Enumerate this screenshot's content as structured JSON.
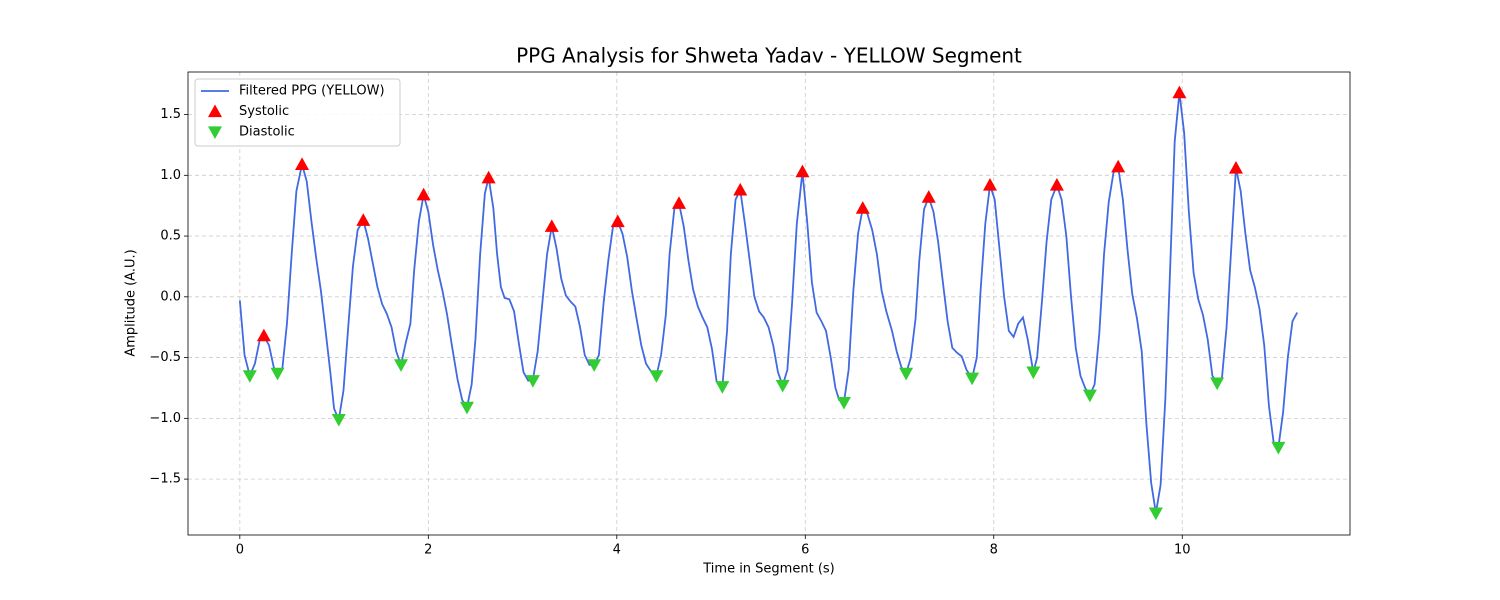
{
  "chart_data": {
    "type": "line",
    "title": "PPG Analysis for Shweta Yadav - YELLOW Segment",
    "xlabel": "Time in Segment (s)",
    "ylabel": "Amplitude (A.U.)",
    "xlim": [
      -0.55,
      11.78
    ],
    "ylim": [
      -1.96,
      1.85
    ],
    "xticks": [
      0,
      2,
      4,
      6,
      8,
      10
    ],
    "yticks": [
      {
        "value": -1.5,
        "label": "−1.5"
      },
      {
        "value": -1.0,
        "label": "−1.0"
      },
      {
        "value": -0.5,
        "label": "−0.5"
      },
      {
        "value": 0,
        "label": "0.0"
      },
      0.5,
      {
        "value": 1.0,
        "label": "1.0"
      },
      1.5
    ],
    "grid": true,
    "legend": "upper left",
    "series": [
      {
        "name": "Filtered PPG (YELLOW)",
        "color": "#4169e1",
        "marker": "none",
        "x": [
          0.0,
          0.05,
          0.106,
          0.16,
          0.21,
          0.255,
          0.31,
          0.36,
          0.4,
          0.45,
          0.5,
          0.55,
          0.6,
          0.66,
          0.71,
          0.76,
          0.81,
          0.86,
          0.91,
          0.96,
          1.0,
          1.05,
          1.1,
          1.15,
          1.2,
          1.25,
          1.31,
          1.36,
          1.41,
          1.46,
          1.51,
          1.56,
          1.61,
          1.66,
          1.71,
          1.76,
          1.81,
          1.85,
          1.9,
          1.95,
          2.0,
          2.05,
          2.1,
          2.15,
          2.2,
          2.25,
          2.31,
          2.36,
          2.41,
          2.46,
          2.5,
          2.55,
          2.6,
          2.64,
          2.69,
          2.73,
          2.77,
          2.81,
          2.86,
          2.91,
          2.96,
          3.01,
          3.06,
          3.11,
          3.16,
          3.21,
          3.26,
          3.31,
          3.36,
          3.41,
          3.46,
          3.51,
          3.56,
          3.61,
          3.66,
          3.71,
          3.76,
          3.81,
          3.86,
          3.91,
          3.96,
          4.01,
          4.06,
          4.11,
          4.16,
          4.21,
          4.26,
          4.31,
          4.36,
          4.42,
          4.47,
          4.52,
          4.56,
          4.61,
          4.66,
          4.71,
          4.76,
          4.81,
          4.86,
          4.91,
          4.96,
          5.01,
          5.06,
          5.12,
          5.17,
          5.21,
          5.26,
          5.31,
          5.36,
          5.41,
          5.46,
          5.51,
          5.56,
          5.61,
          5.66,
          5.71,
          5.76,
          5.81,
          5.86,
          5.91,
          5.97,
          6.02,
          6.07,
          6.12,
          6.17,
          6.22,
          6.27,
          6.32,
          6.36,
          6.41,
          6.46,
          6.51,
          6.56,
          6.61,
          6.66,
          6.71,
          6.76,
          6.81,
          6.86,
          6.92,
          6.97,
          7.02,
          7.07,
          7.12,
          7.17,
          7.21,
          7.26,
          7.31,
          7.36,
          7.41,
          7.46,
          7.51,
          7.56,
          7.61,
          7.66,
          7.71,
          7.77,
          7.82,
          7.86,
          7.91,
          7.96,
          8.01,
          8.06,
          8.11,
          8.16,
          8.21,
          8.26,
          8.31,
          8.36,
          8.42,
          8.46,
          8.51,
          8.56,
          8.61,
          8.67,
          8.72,
          8.77,
          8.82,
          8.87,
          8.92,
          8.97,
          9.02,
          9.07,
          9.12,
          9.17,
          9.22,
          9.27,
          9.32,
          9.37,
          9.42,
          9.47,
          9.52,
          9.57,
          9.62,
          9.67,
          9.72,
          9.77,
          9.82,
          9.87,
          9.92,
          9.97,
          10.02,
          10.07,
          10.12,
          10.17,
          10.22,
          10.27,
          10.32,
          10.37,
          10.42,
          10.47,
          10.52,
          10.57,
          10.62,
          10.67,
          10.72,
          10.77,
          10.82,
          10.87,
          10.92,
          10.97,
          11.02,
          11.07,
          11.12,
          11.17,
          11.22
        ],
        "values": [
          -0.03,
          -0.48,
          -0.65,
          -0.55,
          -0.36,
          -0.32,
          -0.4,
          -0.58,
          -0.63,
          -0.6,
          -0.22,
          0.35,
          0.87,
          1.09,
          0.95,
          0.62,
          0.32,
          0.05,
          -0.28,
          -0.62,
          -0.92,
          -1.01,
          -0.77,
          -0.25,
          0.25,
          0.55,
          0.63,
          0.48,
          0.28,
          0.08,
          -0.06,
          -0.14,
          -0.25,
          -0.45,
          -0.56,
          -0.38,
          -0.22,
          0.22,
          0.62,
          0.84,
          0.7,
          0.43,
          0.22,
          0.05,
          -0.15,
          -0.4,
          -0.68,
          -0.85,
          -0.91,
          -0.72,
          -0.35,
          0.35,
          0.85,
          0.98,
          0.73,
          0.35,
          0.08,
          -0.01,
          -0.02,
          -0.12,
          -0.38,
          -0.62,
          -0.69,
          -0.68,
          -0.45,
          -0.05,
          0.35,
          0.58,
          0.4,
          0.15,
          0.01,
          -0.04,
          -0.08,
          -0.25,
          -0.48,
          -0.56,
          -0.56,
          -0.48,
          -0.05,
          0.3,
          0.58,
          0.62,
          0.52,
          0.33,
          0.05,
          -0.18,
          -0.4,
          -0.55,
          -0.61,
          -0.65,
          -0.48,
          -0.15,
          0.35,
          0.72,
          0.77,
          0.58,
          0.3,
          0.06,
          -0.08,
          -0.17,
          -0.25,
          -0.43,
          -0.7,
          -0.74,
          -0.28,
          0.35,
          0.8,
          0.88,
          0.6,
          0.3,
          0.0,
          -0.12,
          -0.17,
          -0.25,
          -0.4,
          -0.62,
          -0.73,
          -0.6,
          -0.05,
          0.6,
          1.03,
          0.62,
          0.12,
          -0.13,
          -0.2,
          -0.28,
          -0.5,
          -0.75,
          -0.85,
          -0.87,
          -0.6,
          0.05,
          0.52,
          0.73,
          0.68,
          0.55,
          0.35,
          0.05,
          -0.12,
          -0.28,
          -0.45,
          -0.58,
          -0.63,
          -0.5,
          -0.18,
          0.3,
          0.72,
          0.82,
          0.7,
          0.45,
          0.12,
          -0.2,
          -0.42,
          -0.46,
          -0.49,
          -0.6,
          -0.67,
          -0.5,
          0.05,
          0.6,
          0.92,
          0.8,
          0.4,
          0.0,
          -0.28,
          -0.33,
          -0.22,
          -0.17,
          -0.35,
          -0.62,
          -0.5,
          -0.05,
          0.45,
          0.8,
          0.92,
          0.8,
          0.5,
          0.0,
          -0.42,
          -0.65,
          -0.75,
          -0.81,
          -0.72,
          -0.3,
          0.35,
          0.78,
          1.02,
          1.07,
          0.8,
          0.38,
          0.02,
          -0.18,
          -0.45,
          -1.05,
          -1.53,
          -1.78,
          -1.55,
          -0.85,
          0.2,
          1.28,
          1.68,
          1.35,
          0.7,
          0.2,
          -0.02,
          -0.15,
          -0.35,
          -0.65,
          -0.71,
          -0.68,
          -0.25,
          0.4,
          1.06,
          0.87,
          0.52,
          0.22,
          0.08,
          -0.1,
          -0.4,
          -0.9,
          -1.2,
          -1.24,
          -0.95,
          -0.5,
          -0.2,
          -0.13
        ]
      },
      {
        "name": "Systolic",
        "color": "#ff0000",
        "marker": "triangle-up",
        "x": [
          0.255,
          0.66,
          1.31,
          1.95,
          2.64,
          3.31,
          4.01,
          4.66,
          5.31,
          5.97,
          6.61,
          7.31,
          7.96,
          8.67,
          9.32,
          9.97,
          10.57
        ],
        "values": [
          -0.32,
          1.09,
          0.63,
          0.84,
          0.98,
          0.58,
          0.62,
          0.77,
          0.88,
          1.03,
          0.73,
          0.82,
          0.92,
          0.92,
          1.07,
          1.68,
          1.06
        ]
      },
      {
        "name": "Diastolic",
        "color": "#32cd32",
        "marker": "triangle-down",
        "x": [
          0.106,
          0.4,
          1.05,
          1.71,
          2.41,
          3.11,
          3.76,
          4.42,
          5.12,
          5.76,
          6.41,
          7.07,
          7.77,
          8.42,
          9.02,
          9.72,
          10.37,
          11.02
        ],
        "values": [
          -0.65,
          -0.63,
          -1.01,
          -0.56,
          -0.91,
          -0.69,
          -0.56,
          -0.65,
          -0.74,
          -0.73,
          -0.87,
          -0.63,
          -0.67,
          -0.62,
          -0.81,
          -1.78,
          -0.71,
          -1.24
        ]
      }
    ]
  }
}
